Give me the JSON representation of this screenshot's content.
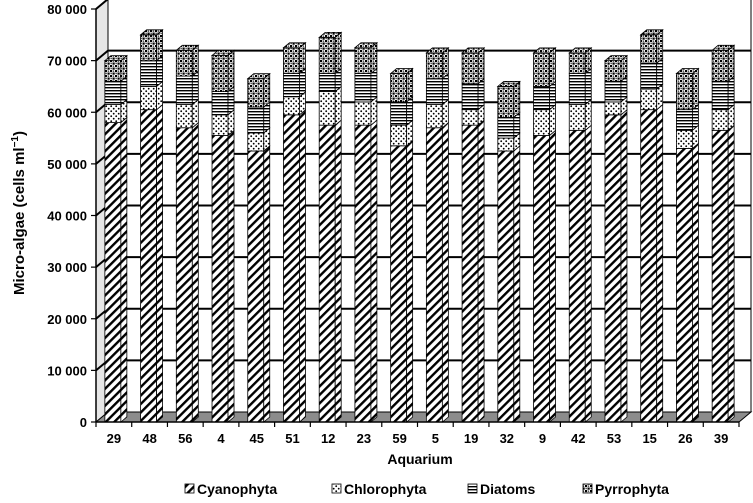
{
  "chart_data": {
    "type": "bar",
    "stacked": true,
    "three_d": true,
    "xlabel": "Aquarium",
    "ylabel_main": "Micro-algae (cells ml",
    "ylabel_sup": "−1",
    "ylabel_close": ")",
    "ylim": [
      0,
      80000
    ],
    "ytick_values": [
      0,
      10000,
      20000,
      30000,
      40000,
      50000,
      60000,
      70000,
      80000
    ],
    "ytick_labels": [
      "0",
      "10 000",
      "20 000",
      "30 000",
      "40 000",
      "50 000",
      "60 000",
      "70 000",
      "80 000"
    ],
    "grid": true,
    "legend_position": "bottom",
    "categories": [
      "29",
      "48",
      "56",
      "4",
      "45",
      "51",
      "12",
      "23",
      "59",
      "5",
      "19",
      "32",
      "9",
      "42",
      "53",
      "15",
      "26",
      "39"
    ],
    "series": [
      {
        "name": "Cyanophyta",
        "pattern": "diagonal-hatch",
        "values": [
          58000,
          60500,
          57000,
          55500,
          52500,
          59500,
          57500,
          57500,
          53500,
          57000,
          57500,
          52500,
          55500,
          56500,
          59500,
          60500,
          53000,
          56500
        ]
      },
      {
        "name": "Chlorophyta",
        "pattern": "dots",
        "values": [
          3500,
          4500,
          4500,
          4000,
          3500,
          3500,
          6500,
          4500,
          4000,
          4500,
          3000,
          2500,
          5000,
          5000,
          2500,
          4000,
          3500,
          4000
        ]
      },
      {
        "name": "Diatoms",
        "pattern": "horizontal-lines",
        "values": [
          4500,
          5000,
          5500,
          4500,
          5000,
          4500,
          3500,
          5500,
          4500,
          5000,
          5000,
          4000,
          4500,
          6000,
          4000,
          5000,
          4000,
          5500
        ]
      },
      {
        "name": "Pyrrophyta",
        "pattern": "cross-dots",
        "values": [
          4000,
          5000,
          5000,
          7000,
          5500,
          5000,
          7000,
          5000,
          5500,
          5000,
          6000,
          6000,
          6500,
          4000,
          4000,
          5500,
          7000,
          6000
        ]
      }
    ]
  }
}
